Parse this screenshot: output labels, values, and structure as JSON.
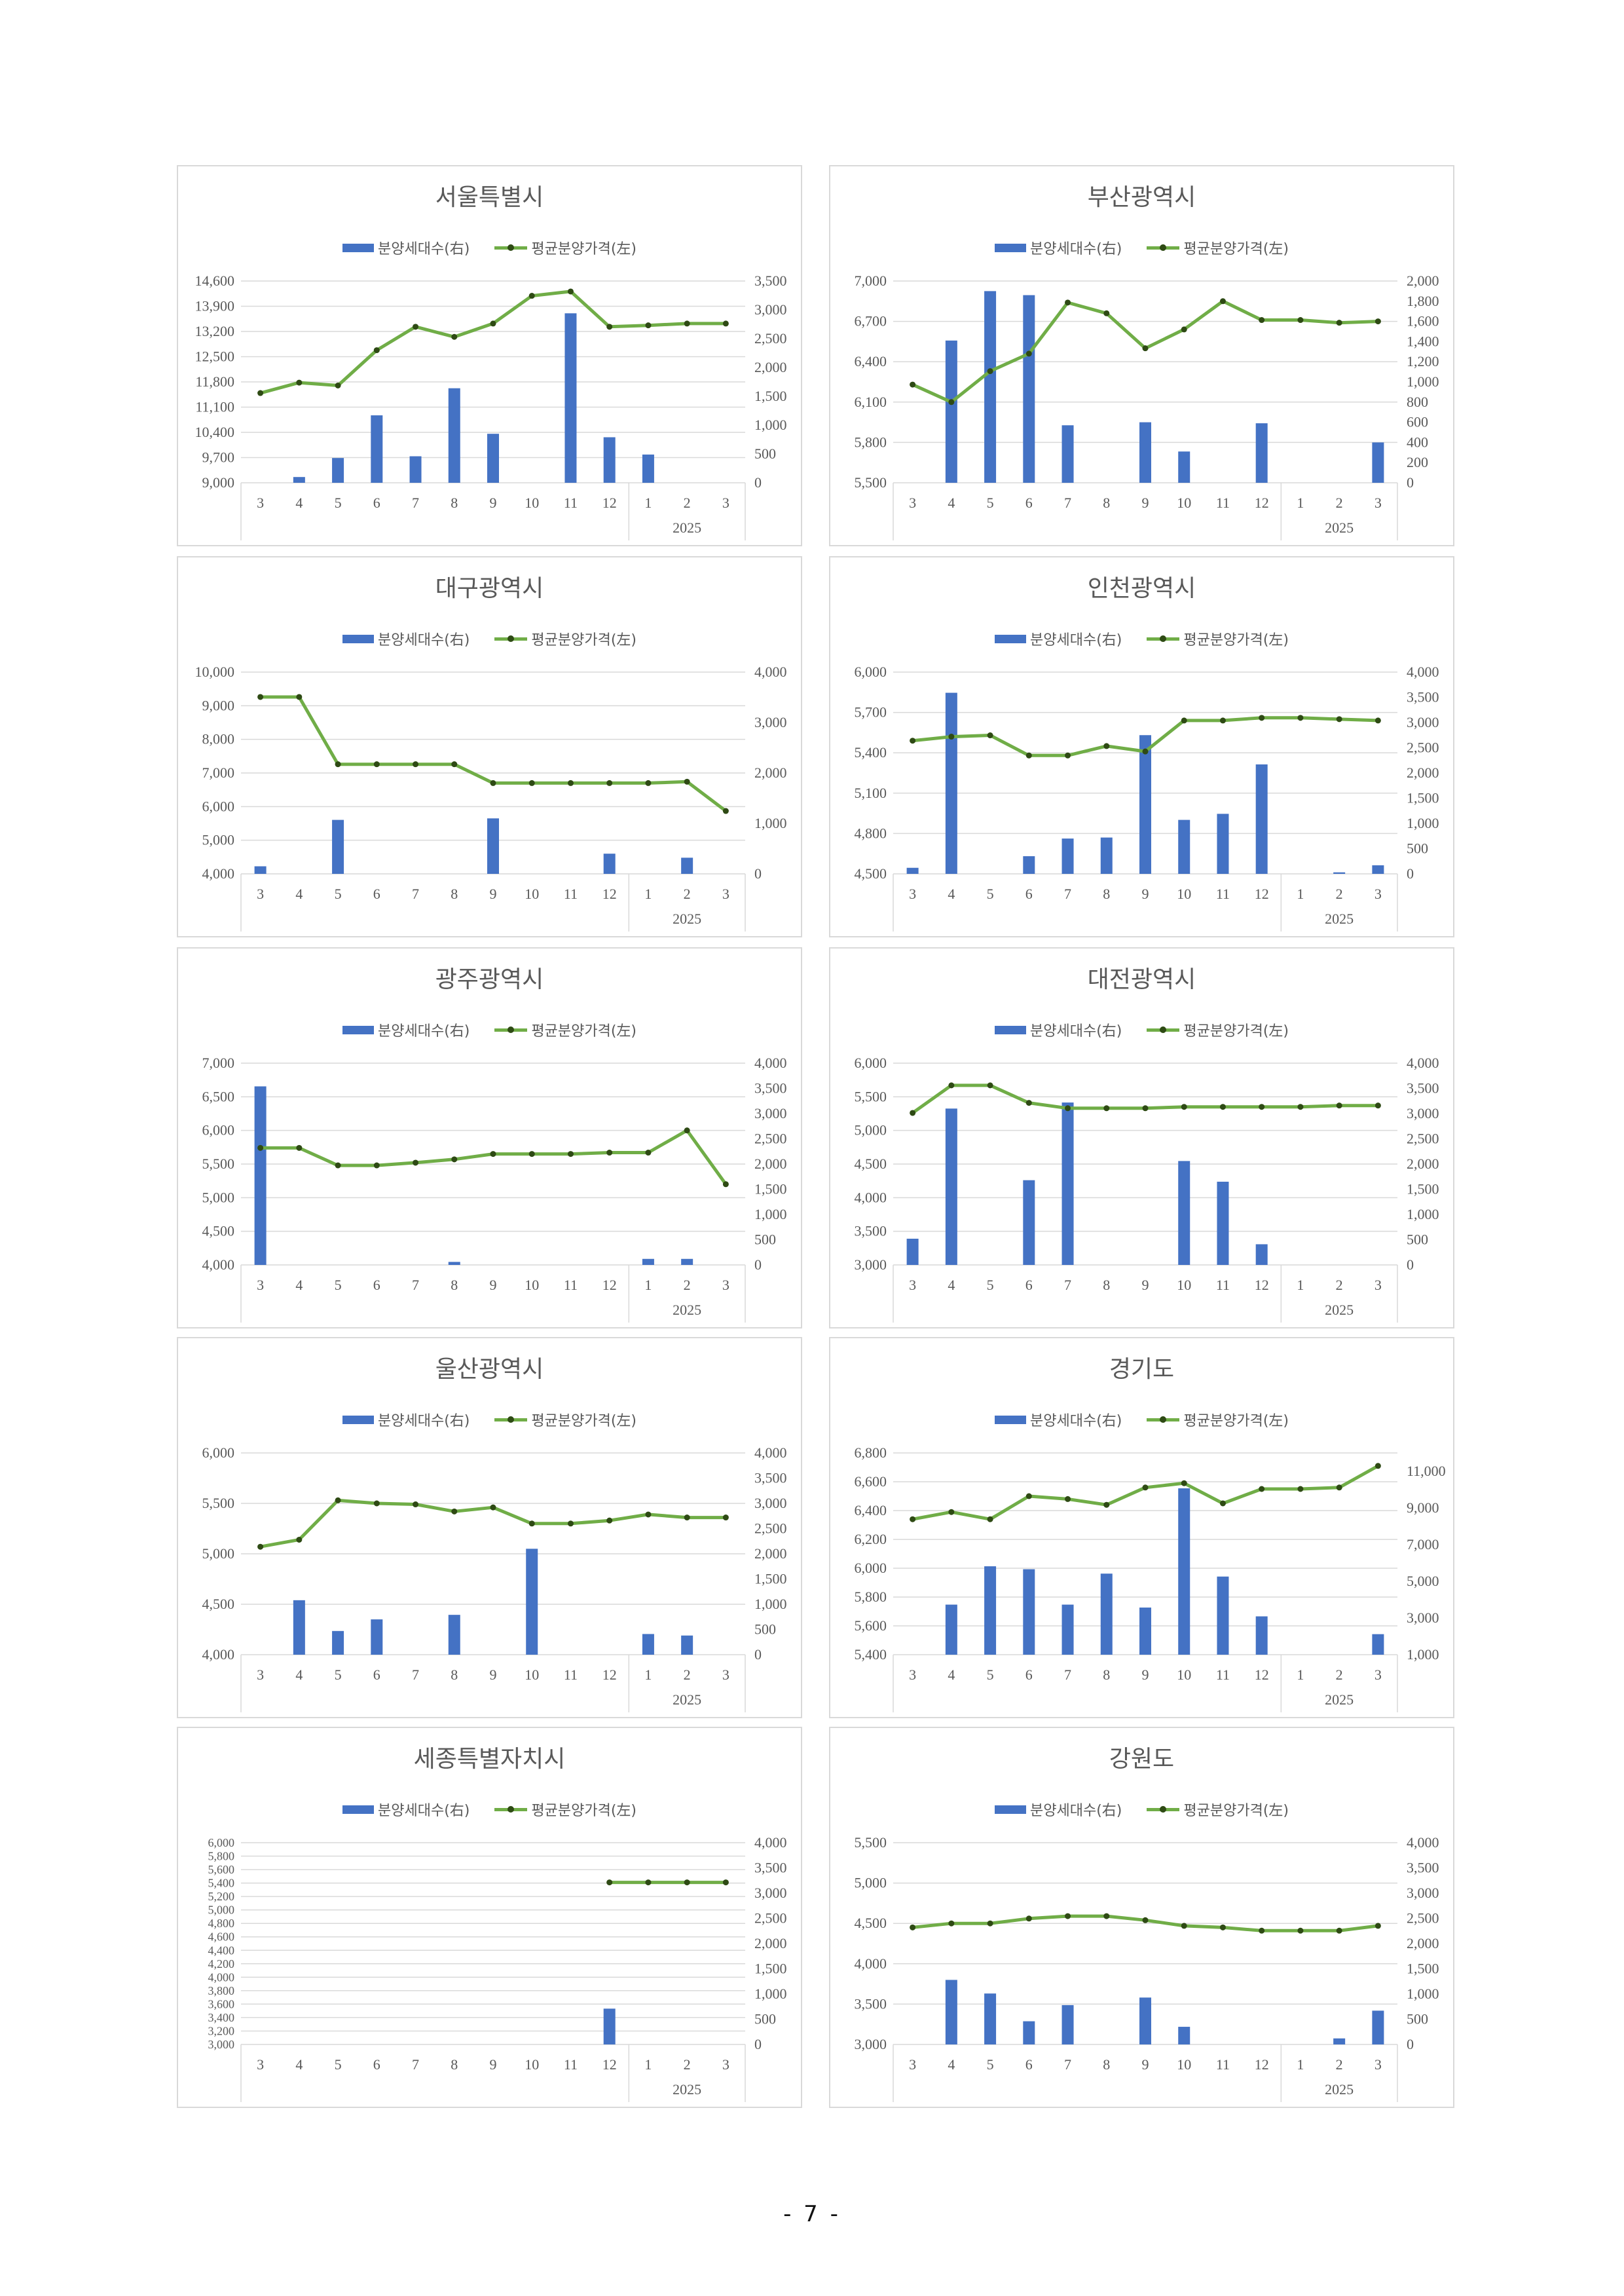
{
  "page_number": "- 7 -",
  "colors": {
    "bar": "#4472C4",
    "line": "#70AD47",
    "marker": "#2E4A14",
    "grid": "#D9D9D9",
    "text": "#595959"
  },
  "chart_data": [
    {
      "type": "bar",
      "title": "서울특별시",
      "categories": [
        "3",
        "4",
        "5",
        "6",
        "7",
        "8",
        "9",
        "10",
        "11",
        "12",
        "1",
        "2",
        "3"
      ],
      "category_group": {
        "label": "2025",
        "start_index": 10,
        "end_index": 12
      },
      "series": [
        {
          "name": "분양세대수(右)",
          "chart_type": "bar",
          "axis": "right",
          "values": [
            0,
            100,
            430,
            1170,
            460,
            1640,
            850,
            0,
            2940,
            790,
            490,
            0,
            0
          ]
        },
        {
          "name": "평균분양가격(左)",
          "chart_type": "line",
          "axis": "left",
          "values": [
            11490,
            11780,
            11700,
            12680,
            13330,
            13050,
            13420,
            14190,
            14310,
            13330,
            13370,
            13420,
            13420
          ]
        }
      ],
      "y_left": {
        "range": [
          9000,
          14600
        ],
        "ticks": [
          "9,000",
          "9,700",
          "10,400",
          "11,100",
          "11,800",
          "12,500",
          "13,200",
          "13,900",
          "14,600"
        ]
      },
      "y_right": {
        "range": [
          0,
          3500
        ],
        "ticks": [
          "0",
          "500",
          "1,000",
          "1,500",
          "2,000",
          "2,500",
          "3,000",
          "3,500"
        ]
      },
      "grid": true,
      "legend": "top"
    },
    {
      "type": "bar",
      "title": "부산광역시",
      "categories": [
        "3",
        "4",
        "5",
        "6",
        "7",
        "8",
        "9",
        "10",
        "11",
        "12",
        "1",
        "2",
        "3"
      ],
      "category_group": {
        "label": "2025",
        "start_index": 10,
        "end_index": 12
      },
      "series": [
        {
          "name": "분양세대수(右)",
          "chart_type": "bar",
          "axis": "right",
          "values": [
            0,
            1410,
            1900,
            1860,
            570,
            0,
            600,
            310,
            0,
            590,
            0,
            0,
            400
          ]
        },
        {
          "name": "평균분양가격(左)",
          "chart_type": "line",
          "axis": "left",
          "values": [
            6230,
            6100,
            6330,
            6460,
            6840,
            6760,
            6500,
            6640,
            6850,
            6710,
            6710,
            6690,
            6700
          ]
        }
      ],
      "y_left": {
        "range": [
          5500,
          7000
        ],
        "ticks": [
          "5,500",
          "5,800",
          "6,100",
          "6,400",
          "6,700",
          "7,000"
        ]
      },
      "y_right": {
        "range": [
          0,
          2000
        ],
        "ticks": [
          "0",
          "200",
          "400",
          "600",
          "800",
          "1,000",
          "1,200",
          "1,400",
          "1,600",
          "1,800",
          "2,000"
        ]
      },
      "grid": true,
      "legend": "top"
    },
    {
      "type": "bar",
      "title": "대구광역시",
      "categories": [
        "3",
        "4",
        "5",
        "6",
        "7",
        "8",
        "9",
        "10",
        "11",
        "12",
        "1",
        "2",
        "3"
      ],
      "category_group": {
        "label": "2025",
        "start_index": 10,
        "end_index": 12
      },
      "series": [
        {
          "name": "분양세대수(右)",
          "chart_type": "bar",
          "axis": "right",
          "values": [
            150,
            0,
            1070,
            0,
            0,
            0,
            1100,
            0,
            0,
            400,
            0,
            320,
            0
          ]
        },
        {
          "name": "평균분양가격(左)",
          "chart_type": "line",
          "axis": "left",
          "values": [
            9260,
            9260,
            7260,
            7260,
            7260,
            7260,
            6700,
            6700,
            6700,
            6700,
            6700,
            6740,
            5870
          ]
        }
      ],
      "y_left": {
        "range": [
          4000,
          10000
        ],
        "ticks": [
          "4,000",
          "5,000",
          "6,000",
          "7,000",
          "8,000",
          "9,000",
          "10,000"
        ]
      },
      "y_right": {
        "range": [
          0,
          4000
        ],
        "ticks": [
          "0",
          "1,000",
          "2,000",
          "3,000",
          "4,000"
        ]
      },
      "grid": true,
      "legend": "top"
    },
    {
      "type": "bar",
      "title": "인천광역시",
      "categories": [
        "3",
        "4",
        "5",
        "6",
        "7",
        "8",
        "9",
        "10",
        "11",
        "12",
        "1",
        "2",
        "3"
      ],
      "category_group": {
        "label": "2025",
        "start_index": 10,
        "end_index": 12
      },
      "series": [
        {
          "name": "분양세대수(右)",
          "chart_type": "bar",
          "axis": "right",
          "values": [
            120,
            3590,
            0,
            350,
            700,
            720,
            2750,
            1070,
            1190,
            2170,
            0,
            30,
            170
          ]
        },
        {
          "name": "평균분양가격(左)",
          "chart_type": "line",
          "axis": "left",
          "values": [
            5490,
            5520,
            5530,
            5380,
            5380,
            5450,
            5410,
            5640,
            5640,
            5660,
            5660,
            5650,
            5640
          ]
        }
      ],
      "y_left": {
        "range": [
          4500,
          6000
        ],
        "ticks": [
          "4,500",
          "4,800",
          "5,100",
          "5,400",
          "5,700",
          "6,000"
        ]
      },
      "y_right": {
        "range": [
          0,
          4000
        ],
        "ticks": [
          "0",
          "500",
          "1,000",
          "1,500",
          "2,000",
          "2,500",
          "3,000",
          "3,500",
          "4,000"
        ]
      },
      "grid": true,
      "legend": "top"
    },
    {
      "type": "bar",
      "title": "광주광역시",
      "categories": [
        "3",
        "4",
        "5",
        "6",
        "7",
        "8",
        "9",
        "10",
        "11",
        "12",
        "1",
        "2",
        "3"
      ],
      "category_group": {
        "label": "2025",
        "start_index": 10,
        "end_index": 12
      },
      "series": [
        {
          "name": "분양세대수(右)",
          "chart_type": "bar",
          "axis": "right",
          "values": [
            3540,
            0,
            0,
            0,
            0,
            60,
            0,
            0,
            0,
            0,
            120,
            120,
            0
          ]
        },
        {
          "name": "평균분양가격(左)",
          "chart_type": "line",
          "axis": "left",
          "values": [
            5740,
            5740,
            5480,
            5480,
            5520,
            5570,
            5650,
            5650,
            5650,
            5670,
            5670,
            6000,
            5200
          ]
        }
      ],
      "y_left": {
        "range": [
          4000,
          7000
        ],
        "ticks": [
          "4,000",
          "4,500",
          "5,000",
          "5,500",
          "6,000",
          "6,500",
          "7,000"
        ]
      },
      "y_right": {
        "range": [
          0,
          4000
        ],
        "ticks": [
          "0",
          "500",
          "1,000",
          "1,500",
          "2,000",
          "2,500",
          "3,000",
          "3,500",
          "4,000"
        ]
      },
      "grid": true,
      "legend": "top"
    },
    {
      "type": "bar",
      "title": "대전광역시",
      "categories": [
        "3",
        "4",
        "5",
        "6",
        "7",
        "8",
        "9",
        "10",
        "11",
        "12",
        "1",
        "2",
        "3"
      ],
      "category_group": {
        "label": "2025",
        "start_index": 10,
        "end_index": 12
      },
      "series": [
        {
          "name": "분양세대수(右)",
          "chart_type": "bar",
          "axis": "right",
          "values": [
            520,
            3100,
            0,
            1680,
            3220,
            0,
            0,
            2060,
            1650,
            410,
            0,
            0,
            0
          ]
        },
        {
          "name": "평균분양가격(左)",
          "chart_type": "line",
          "axis": "left",
          "values": [
            5260,
            5670,
            5670,
            5410,
            5330,
            5330,
            5330,
            5350,
            5350,
            5350,
            5350,
            5370,
            5370
          ]
        }
      ],
      "y_left": {
        "range": [
          3000,
          6000
        ],
        "ticks": [
          "3,000",
          "3,500",
          "4,000",
          "4,500",
          "5,000",
          "5,500",
          "6,000"
        ]
      },
      "y_right": {
        "range": [
          0,
          4000
        ],
        "ticks": [
          "0",
          "500",
          "1,000",
          "1,500",
          "2,000",
          "2,500",
          "3,000",
          "3,500",
          "4,000"
        ]
      },
      "grid": true,
      "legend": "top"
    },
    {
      "type": "bar",
      "title": "울산광역시",
      "categories": [
        "3",
        "4",
        "5",
        "6",
        "7",
        "8",
        "9",
        "10",
        "11",
        "12",
        "1",
        "2",
        "3"
      ],
      "category_group": {
        "label": "2025",
        "start_index": 10,
        "end_index": 12
      },
      "series": [
        {
          "name": "분양세대수(右)",
          "chart_type": "bar",
          "axis": "right",
          "values": [
            0,
            1080,
            470,
            700,
            0,
            790,
            0,
            2100,
            0,
            0,
            410,
            380,
            0
          ]
        },
        {
          "name": "평균분양가격(左)",
          "chart_type": "line",
          "axis": "left",
          "values": [
            5070,
            5140,
            5530,
            5500,
            5490,
            5420,
            5460,
            5300,
            5300,
            5330,
            5390,
            5360,
            5360
          ]
        }
      ],
      "y_left": {
        "range": [
          4000,
          6000
        ],
        "ticks": [
          "4,000",
          "4,500",
          "5,000",
          "5,500",
          "6,000"
        ]
      },
      "y_right": {
        "range": [
          0,
          4000
        ],
        "ticks": [
          "0",
          "500",
          "1,000",
          "1,500",
          "2,000",
          "2,500",
          "3,000",
          "3,500",
          "4,000"
        ]
      },
      "grid": true,
      "legend": "top"
    },
    {
      "type": "bar",
      "title": "경기도",
      "categories": [
        "3",
        "4",
        "5",
        "6",
        "7",
        "8",
        "9",
        "10",
        "11",
        "12",
        "1",
        "2",
        "3"
      ],
      "category_group": {
        "label": "2025",
        "start_index": 10,
        "end_index": 12
      },
      "series": [
        {
          "name": "분양세대수(右)",
          "chart_type": "bar",
          "axis": "right",
          "values": [
            0,
            3730,
            5820,
            5660,
            3730,
            5420,
            3570,
            10070,
            5260,
            3090,
            0,
            0,
            2120
          ]
        },
        {
          "name": "평균분양가격(左)",
          "chart_type": "line",
          "axis": "left",
          "values": [
            6340,
            6390,
            6340,
            6500,
            6480,
            6440,
            6560,
            6590,
            6450,
            6550,
            6550,
            6560,
            6710
          ]
        }
      ],
      "y_left": {
        "range": [
          5400,
          6800
        ],
        "ticks": [
          "5,400",
          "5,600",
          "5,800",
          "6,000",
          "6,200",
          "6,400",
          "6,600",
          "6,800"
        ]
      },
      "y_right": {
        "range": [
          1000,
          12000
        ],
        "ticks": [
          "1,000",
          "3,000",
          "5,000",
          "7,000",
          "9,000",
          "11,000"
        ]
      },
      "grid": true,
      "legend": "top"
    },
    {
      "type": "bar",
      "title": "세종특별자치시",
      "categories": [
        "3",
        "4",
        "5",
        "6",
        "7",
        "8",
        "9",
        "10",
        "11",
        "12",
        "1",
        "2",
        "3"
      ],
      "category_group": {
        "label": "2025",
        "start_index": 10,
        "end_index": 12
      },
      "series": [
        {
          "name": "분양세대수(右)",
          "chart_type": "bar",
          "axis": "right",
          "values": [
            0,
            0,
            0,
            0,
            0,
            0,
            0,
            0,
            0,
            710,
            0,
            0,
            0
          ]
        },
        {
          "name": "평균분양가격(左)",
          "chart_type": "line",
          "axis": "left",
          "values": [
            null,
            null,
            null,
            null,
            null,
            null,
            null,
            null,
            null,
            5410,
            5410,
            5410,
            5410
          ]
        }
      ],
      "y_left": {
        "range": [
          3000,
          6000
        ],
        "ticks": [
          "3,000",
          "3,200",
          "3,400",
          "3,600",
          "3,800",
          "4,000",
          "4,200",
          "4,400",
          "4,600",
          "4,800",
          "5,000",
          "5,200",
          "5,400",
          "5,600",
          "5,800",
          "6,000"
        ]
      },
      "y_right": {
        "range": [
          0,
          4000
        ],
        "ticks": [
          "0",
          "500",
          "1,000",
          "1,500",
          "2,000",
          "2,500",
          "3,000",
          "3,500",
          "4,000"
        ]
      },
      "grid": true,
      "legend": "top"
    },
    {
      "type": "bar",
      "title": "강원도",
      "categories": [
        "3",
        "4",
        "5",
        "6",
        "7",
        "8",
        "9",
        "10",
        "11",
        "12",
        "1",
        "2",
        "3"
      ],
      "category_group": {
        "label": "2025",
        "start_index": 10,
        "end_index": 12
      },
      "series": [
        {
          "name": "분양세대수(右)",
          "chart_type": "bar",
          "axis": "right",
          "values": [
            0,
            1280,
            1010,
            460,
            780,
            0,
            930,
            350,
            0,
            0,
            0,
            120,
            670
          ]
        },
        {
          "name": "평균분양가격(左)",
          "chart_type": "line",
          "axis": "left",
          "values": [
            4450,
            4500,
            4500,
            4560,
            4590,
            4590,
            4540,
            4470,
            4450,
            4410,
            4410,
            4410,
            4470
          ]
        }
      ],
      "y_left": {
        "range": [
          3000,
          5500
        ],
        "ticks": [
          "3,000",
          "3,500",
          "4,000",
          "4,500",
          "5,000",
          "5,500"
        ]
      },
      "y_right": {
        "range": [
          0,
          4000
        ],
        "ticks": [
          "0",
          "500",
          "1,000",
          "1,500",
          "2,000",
          "2,500",
          "3,000",
          "3,500",
          "4,000"
        ]
      },
      "grid": true,
      "legend": "top"
    }
  ]
}
